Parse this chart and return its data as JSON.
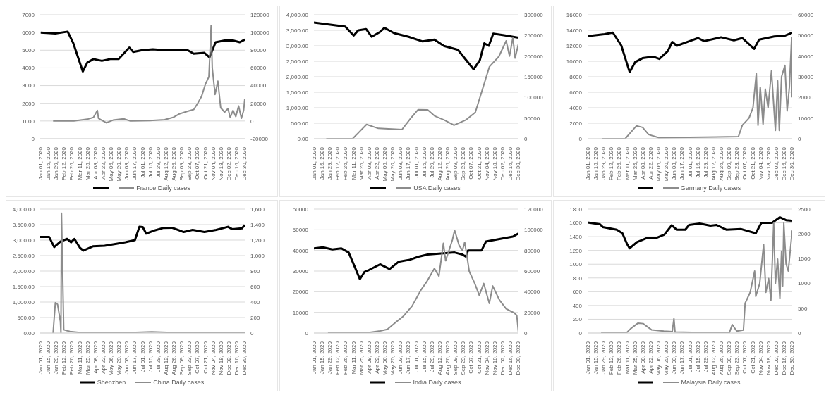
{
  "chart_data": [
    {
      "type": "line",
      "legend": "bottom",
      "grid": "y",
      "xlim": [
        "2020-01-01",
        "2020-12-31"
      ],
      "ylim": [
        0,
        7000
      ],
      "yticks": [
        0,
        1000,
        2000,
        3000,
        4000,
        5000,
        6000,
        7000
      ],
      "y2lim": [
        -20000,
        120000
      ],
      "y2ticks": [
        -20000,
        0,
        20000,
        40000,
        60000,
        80000,
        100000,
        120000
      ],
      "xticks": [
        {
          "value": "2020-01-01",
          "label": "Jan 01, 2020"
        },
        {
          "value": "2020-01-15",
          "label": "Jan 15, 2020"
        },
        {
          "value": "2020-01-29",
          "label": "Jan 29, 2020"
        },
        {
          "value": "2020-02-12",
          "label": "Feb 12, 2020"
        },
        {
          "value": "2020-02-26",
          "label": "Feb 26, 2020"
        },
        {
          "value": "2020-03-11",
          "label": "Mar 11, 2020"
        },
        {
          "value": "2020-03-25",
          "label": "Mar 25, 2020"
        },
        {
          "value": "2020-04-08",
          "label": "Apr 08, 2020"
        },
        {
          "value": "2020-04-22",
          "label": "Apr 22, 2020"
        },
        {
          "value": "2020-05-06",
          "label": "May 06, 2020"
        },
        {
          "value": "2020-05-20",
          "label": "May 20, 2020"
        },
        {
          "value": "2020-06-03",
          "label": "Jun 03, 2020"
        },
        {
          "value": "2020-06-17",
          "label": "Jun 17, 2020"
        },
        {
          "value": "2020-07-01",
          "label": "Jul 01, 2020"
        },
        {
          "value": "2020-07-15",
          "label": "Jul 15, 2020"
        },
        {
          "value": "2020-07-29",
          "label": "Jul 29, 2020"
        },
        {
          "value": "2020-08-12",
          "label": "Aug 12, 2020"
        },
        {
          "value": "2020-08-26",
          "label": "Aug 26, 2020"
        },
        {
          "value": "2020-09-09",
          "label": "Sep 09, 2020"
        },
        {
          "value": "2020-09-23",
          "label": "Sep 23, 2020"
        },
        {
          "value": "2020-10-07",
          "label": "Oct 07, 2020"
        },
        {
          "value": "2020-10-21",
          "label": "Oct 21, 2020"
        },
        {
          "value": "2020-11-04",
          "label": "Nov 04, 2020"
        },
        {
          "value": "2020-11-18",
          "label": "Nov 18, 2020"
        },
        {
          "value": "2020-12-02",
          "label": "Dec 02, 2020"
        },
        {
          "value": "2020-12-16",
          "label": "Dec 16, 2020"
        },
        {
          "value": "2020-12-30",
          "label": "Dec 30, 2020"
        }
      ],
      "series": [
        {
          "color": "#000000",
          "x": [
            "2020-01-02",
            "2020-01-28",
            "2020-02-19",
            "2020-02-29",
            "2020-03-17",
            "2020-03-25",
            "2020-04-05",
            "2020-04-20",
            "2020-05-05",
            "2020-05-20",
            "2020-06-08",
            "2020-06-15",
            "2020-07-01",
            "2020-07-20",
            "2020-08-10",
            "2020-09-01",
            "2020-09-20",
            "2020-10-01",
            "2020-10-20",
            "2020-10-29",
            "2020-11-09",
            "2020-11-25",
            "2020-12-10",
            "2020-12-22",
            "2020-12-31"
          ],
          "values": [
            6000,
            5950,
            6050,
            5400,
            3800,
            4300,
            4500,
            4400,
            4500,
            4500,
            5150,
            4900,
            5000,
            5050,
            5000,
            5000,
            5000,
            4800,
            4850,
            4600,
            5450,
            5550,
            5550,
            5450,
            5600
          ]
        },
        {
          "name": "France Daily cases",
          "color": "#8c8c8c",
          "axis": "y2",
          "x": [
            "2020-01-24",
            "2020-03-01",
            "2020-03-25",
            "2020-04-05",
            "2020-04-12",
            "2020-04-14",
            "2020-04-28",
            "2020-05-10",
            "2020-05-29",
            "2020-06-10",
            "2020-07-15",
            "2020-08-10",
            "2020-08-25",
            "2020-09-05",
            "2020-09-20",
            "2020-10-01",
            "2020-10-08",
            "2020-10-15",
            "2020-10-22",
            "2020-10-28",
            "2020-11-01",
            "2020-11-03",
            "2020-11-08",
            "2020-11-13",
            "2020-11-18",
            "2020-11-25",
            "2020-12-01",
            "2020-12-05",
            "2020-12-10",
            "2020-12-15",
            "2020-12-20",
            "2020-12-25",
            "2020-12-29",
            "2020-12-31"
          ],
          "values": [
            0,
            0,
            2000,
            4000,
            12000,
            3000,
            -2000,
            1000,
            2500,
            0,
            500,
            1500,
            4000,
            8000,
            11000,
            13000,
            20000,
            28000,
            42000,
            50000,
            108000,
            60000,
            30000,
            45000,
            15000,
            10000,
            14000,
            4000,
            12000,
            5000,
            17000,
            3000,
            12000,
            25000
          ]
        }
      ]
    },
    {
      "type": "line",
      "legend": "bottom",
      "grid": "y",
      "xlim": [
        "2020-01-01",
        "2020-12-31"
      ],
      "ylim": [
        0,
        4000
      ],
      "yticks": [
        {
          "value": 0,
          "label": "0.00"
        },
        {
          "value": 500,
          "label": "500.00"
        },
        {
          "value": 1000,
          "label": "1,000.00"
        },
        {
          "value": 1500,
          "label": "1,500.00"
        },
        {
          "value": 2000,
          "label": "2,000.00"
        },
        {
          "value": 2500,
          "label": "2,500.00"
        },
        {
          "value": 3000,
          "label": "3,000.00"
        },
        {
          "value": 3500,
          "label": "3,500.00"
        },
        {
          "value": 4000,
          "label": "4,000.00"
        }
      ],
      "y2lim": [
        0,
        300000
      ],
      "y2ticks": [
        0,
        50000,
        100000,
        150000,
        200000,
        250000,
        300000
      ],
      "xticks": [
        {
          "value": "2020-01-01",
          "label": "Jan 01, 2020"
        },
        {
          "value": "2020-01-15",
          "label": "Jan 15, 2020"
        },
        {
          "value": "2020-01-29",
          "label": "Jan 29, 2020"
        },
        {
          "value": "2020-02-12",
          "label": "Feb 12, 2020"
        },
        {
          "value": "2020-02-26",
          "label": "Feb 26, 2020"
        },
        {
          "value": "2020-03-11",
          "label": "Mar 11, 2020"
        },
        {
          "value": "2020-03-25",
          "label": "Mar 25, 2020"
        },
        {
          "value": "2020-04-08",
          "label": "Apr 08, 2020"
        },
        {
          "value": "2020-04-22",
          "label": "Apr 22, 2020"
        },
        {
          "value": "2020-05-06",
          "label": "May 06, 2020"
        },
        {
          "value": "2020-05-20",
          "label": "May 20, 2020"
        },
        {
          "value": "2020-06-03",
          "label": "Jun 03, 2020"
        },
        {
          "value": "2020-06-17",
          "label": "Jun 17, 2020"
        },
        {
          "value": "2020-07-01",
          "label": "Jul 01, 2020"
        },
        {
          "value": "2020-07-15",
          "label": "Jul 15, 2020"
        },
        {
          "value": "2020-07-29",
          "label": "Jul 29, 2020"
        },
        {
          "value": "2020-08-12",
          "label": "Aug 12, 2020"
        },
        {
          "value": "2020-08-26",
          "label": "Aug 26, 2020"
        },
        {
          "value": "2020-09-09",
          "label": "Sep 09, 2020"
        },
        {
          "value": "2020-09-23",
          "label": "Sep 23, 2020"
        },
        {
          "value": "2020-10-07",
          "label": "Oct 07, 2020"
        },
        {
          "value": "2020-10-21",
          "label": "Oct 21, 2020"
        },
        {
          "value": "2020-11-04",
          "label": "Nov 04, 2020"
        },
        {
          "value": "2020-11-18",
          "label": "Nov 18, 2020"
        },
        {
          "value": "2020-12-02",
          "label": "Dec 02, 2020"
        },
        {
          "value": "2020-12-16",
          "label": "Dec 16, 2020"
        },
        {
          "value": "2020-12-30",
          "label": "Dec 30, 2020"
        }
      ],
      "series": [
        {
          "color": "#000000",
          "x": [
            "2020-01-01",
            "2020-01-23",
            "2020-02-26",
            "2020-03-12",
            "2020-03-20",
            "2020-04-03",
            "2020-04-13",
            "2020-04-28",
            "2020-05-06",
            "2020-05-23",
            "2020-06-18",
            "2020-07-13",
            "2020-08-03",
            "2020-08-20",
            "2020-09-14",
            "2020-09-27",
            "2020-10-12",
            "2020-10-23",
            "2020-10-31",
            "2020-11-08",
            "2020-11-16",
            "2020-12-05",
            "2020-12-31"
          ],
          "values": [
            3750,
            3700,
            3620,
            3330,
            3500,
            3540,
            3290,
            3450,
            3580,
            3410,
            3290,
            3140,
            3200,
            2995,
            2870,
            2575,
            2240,
            2530,
            3080,
            3000,
            3390,
            3340,
            3260
          ]
        },
        {
          "name": "USA Daily cases",
          "color": "#8c8c8c",
          "axis": "y2",
          "x": [
            "2020-01-23",
            "2020-03-10",
            "2020-04-04",
            "2020-04-25",
            "2020-06-06",
            "2020-06-23",
            "2020-07-05",
            "2020-07-22",
            "2020-08-04",
            "2020-08-21",
            "2020-09-07",
            "2020-09-28",
            "2020-10-15",
            "2020-10-28",
            "2020-11-09",
            "2020-11-26",
            "2020-12-09",
            "2020-12-15",
            "2020-12-21",
            "2020-12-25",
            "2020-12-31"
          ],
          "values": [
            0,
            0,
            34600,
            25000,
            22000,
            51600,
            70400,
            70000,
            54700,
            45000,
            32700,
            45300,
            64000,
            120800,
            174000,
            199000,
            237000,
            200000,
            245000,
            195000,
            230000
          ]
        }
      ]
    },
    {
      "type": "line",
      "legend": "bottom",
      "grid": "y",
      "xlim": [
        "2020-01-01",
        "2020-12-31"
      ],
      "ylim": [
        0,
        16000
      ],
      "yticks": [
        0,
        2000,
        4000,
        6000,
        8000,
        10000,
        12000,
        14000,
        16000
      ],
      "y2lim": [
        0,
        60000
      ],
      "y2ticks": [
        0,
        10000,
        20000,
        30000,
        40000,
        50000,
        60000
      ],
      "xticks": [
        {
          "value": "2020-01-01",
          "label": "Jan 01, 2020"
        },
        {
          "value": "2020-01-15",
          "label": "Jan 15, 2020"
        },
        {
          "value": "2020-01-29",
          "label": "Jan 29, 2020"
        },
        {
          "value": "2020-02-12",
          "label": "Feb 12, 2020"
        },
        {
          "value": "2020-02-26",
          "label": "Feb 26, 2020"
        },
        {
          "value": "2020-03-11",
          "label": "Mar 11, 2020"
        },
        {
          "value": "2020-03-25",
          "label": "Mar 25, 2020"
        },
        {
          "value": "2020-04-08",
          "label": "Apr 08, 2020"
        },
        {
          "value": "2020-04-22",
          "label": "Apr 22, 2020"
        },
        {
          "value": "2020-05-06",
          "label": "May 06, 2020"
        },
        {
          "value": "2020-05-20",
          "label": "May 20, 2020"
        },
        {
          "value": "2020-06-03",
          "label": "Jun 03, 2020"
        },
        {
          "value": "2020-06-17",
          "label": "Jun 17, 2020"
        },
        {
          "value": "2020-07-01",
          "label": "Jul 01, 2020"
        },
        {
          "value": "2020-07-15",
          "label": "Jul 15, 2020"
        },
        {
          "value": "2020-07-29",
          "label": "Jul 29, 2020"
        },
        {
          "value": "2020-08-12",
          "label": "Aug 12, 2020"
        },
        {
          "value": "2020-08-26",
          "label": "Aug 26, 2020"
        },
        {
          "value": "2020-09-09",
          "label": "Sep 09, 2020"
        },
        {
          "value": "2020-09-23",
          "label": "Sep 23, 2020"
        },
        {
          "value": "2020-10-07",
          "label": "Oct 07, 2020"
        },
        {
          "value": "2020-10-21",
          "label": "Oct 21, 2020"
        },
        {
          "value": "2020-11-04",
          "label": "Nov 04, 2020"
        },
        {
          "value": "2020-11-18",
          "label": "Nov 18, 2020"
        },
        {
          "value": "2020-12-02",
          "label": "Dec 02, 2020"
        },
        {
          "value": "2020-12-16",
          "label": "Dec 16, 2020"
        },
        {
          "value": "2020-12-30",
          "label": "Dec 30, 2020"
        }
      ],
      "series": [
        {
          "color": "#000000",
          "x": [
            "2020-01-01",
            "2020-01-31",
            "2020-02-15",
            "2020-03-01",
            "2020-03-16",
            "2020-03-26",
            "2020-04-08",
            "2020-04-27",
            "2020-05-08",
            "2020-05-23",
            "2020-05-31",
            "2020-06-08",
            "2020-07-01",
            "2020-07-16",
            "2020-07-27",
            "2020-08-26",
            "2020-09-18",
            "2020-10-03",
            "2020-10-24",
            "2020-11-02",
            "2020-11-29",
            "2020-12-18",
            "2020-12-31"
          ],
          "values": [
            13250,
            13500,
            13700,
            12050,
            8600,
            9900,
            10400,
            10600,
            10300,
            11300,
            12500,
            12000,
            12600,
            13000,
            12600,
            13100,
            12700,
            13000,
            11600,
            12800,
            13200,
            13300,
            13700
          ]
        },
        {
          "name": "Germany Daily cases",
          "color": "#8c8c8c",
          "axis": "y2",
          "x": [
            "2020-01-27",
            "2020-03-08",
            "2020-03-28",
            "2020-04-08",
            "2020-04-19",
            "2020-05-07",
            "2020-06-30",
            "2020-09-26",
            "2020-10-03",
            "2020-10-15",
            "2020-10-22",
            "2020-10-28",
            "2020-10-31",
            "2020-11-04",
            "2020-11-09",
            "2020-11-13",
            "2020-11-18",
            "2020-11-24",
            "2020-12-01",
            "2020-12-05",
            "2020-12-08",
            "2020-12-12",
            "2020-12-18",
            "2020-12-22",
            "2020-12-26",
            "2020-12-30",
            "2020-12-31"
          ],
          "values": [
            0,
            0,
            6200,
            5500,
            2000,
            500,
            700,
            1000,
            6500,
            10000,
            15000,
            31600,
            6500,
            25000,
            7000,
            24000,
            15000,
            32900,
            4000,
            28000,
            4000,
            30000,
            35500,
            13500,
            25000,
            49000,
            20000
          ]
        }
      ]
    },
    {
      "type": "line",
      "legend": "bottom",
      "grid": "y",
      "xlim": [
        "2020-01-01",
        "2020-12-31"
      ],
      "ylim": [
        0,
        4000
      ],
      "yticks": [
        {
          "value": 0,
          "label": "0.00"
        },
        {
          "value": 500,
          "label": "500.00"
        },
        {
          "value": 1000,
          "label": "1,000.00"
        },
        {
          "value": 1500,
          "label": "1,500.00"
        },
        {
          "value": 2000,
          "label": "2,000.00"
        },
        {
          "value": 2500,
          "label": "2,500.00"
        },
        {
          "value": 3000,
          "label": "3,000.00"
        },
        {
          "value": 3500,
          "label": "3,500.00"
        },
        {
          "value": 4000,
          "label": "4,000.00"
        }
      ],
      "y2lim": [
        0,
        1600
      ],
      "y2ticks": [
        0,
        200,
        400,
        600,
        800,
        {
          "value": 1000,
          "label": "1,000"
        },
        {
          "value": 1200,
          "label": "1,200"
        },
        {
          "value": 1400,
          "label": "1,400"
        },
        {
          "value": 1600,
          "label": "1,600"
        }
      ],
      "xticks": [
        {
          "value": "2020-01-01",
          "label": "Jan 01, 2020"
        },
        {
          "value": "2020-01-15",
          "label": "Jan 15, 2020"
        },
        {
          "value": "2020-01-29",
          "label": "Jan 29, 2020"
        },
        {
          "value": "2020-02-12",
          "label": "Feb 12, 2020"
        },
        {
          "value": "2020-02-26",
          "label": "Feb 26, 2020"
        },
        {
          "value": "2020-03-11",
          "label": "Mar 11, 2020"
        },
        {
          "value": "2020-03-25",
          "label": "Mar 25, 2020"
        },
        {
          "value": "2020-04-08",
          "label": "Apr 08, 2020"
        },
        {
          "value": "2020-04-22",
          "label": "Apr 22, 2020"
        },
        {
          "value": "2020-05-06",
          "label": "May 06, 2020"
        },
        {
          "value": "2020-05-20",
          "label": "May 20, 2020"
        },
        {
          "value": "2020-06-03",
          "label": "Jun 03, 2020"
        },
        {
          "value": "2020-06-17",
          "label": "Jun 17, 2020"
        },
        {
          "value": "2020-07-01",
          "label": "Jul 01, 2020"
        },
        {
          "value": "2020-07-15",
          "label": "Jul 15, 2020"
        },
        {
          "value": "2020-07-29",
          "label": "Jul 29, 2020"
        },
        {
          "value": "2020-08-12",
          "label": "Aug 12, 2020"
        },
        {
          "value": "2020-08-26",
          "label": "Aug 26, 2020"
        },
        {
          "value": "2020-09-09",
          "label": "Sep 09, 2020"
        },
        {
          "value": "2020-09-23",
          "label": "Sep 23, 2020"
        },
        {
          "value": "2020-10-07",
          "label": "Oct 07, 2020"
        },
        {
          "value": "2020-10-21",
          "label": "Oct 21, 2020"
        },
        {
          "value": "2020-11-04",
          "label": "Nov 04, 2020"
        },
        {
          "value": "2020-11-18",
          "label": "Nov 18, 2020"
        },
        {
          "value": "2020-12-02",
          "label": "Dec 02, 2020"
        },
        {
          "value": "2020-12-16",
          "label": "Dec 16, 2020"
        },
        {
          "value": "2020-12-30",
          "label": "Dec 30, 2020"
        }
      ],
      "series": [
        {
          "name": "Shenzhen",
          "color": "#000000",
          "x": [
            "2020-01-01",
            "2020-01-17",
            "2020-01-26",
            "2020-02-06",
            "2020-02-18",
            "2020-02-25",
            "2020-03-02",
            "2020-03-12",
            "2020-03-18",
            "2020-04-04",
            "2020-04-25",
            "2020-05-16",
            "2020-06-01",
            "2020-06-18",
            "2020-06-26",
            "2020-07-02",
            "2020-07-08",
            "2020-07-21",
            "2020-08-07",
            "2020-08-23",
            "2020-09-13",
            "2020-09-29",
            "2020-10-20",
            "2020-11-10",
            "2020-12-01",
            "2020-12-09",
            "2020-12-26",
            "2020-12-31"
          ],
          "values": [
            3100,
            3100,
            2775,
            2950,
            3040,
            2930,
            3040,
            2750,
            2660,
            2800,
            2820,
            2880,
            2930,
            3000,
            3430,
            3420,
            3210,
            3300,
            3390,
            3400,
            3260,
            3330,
            3260,
            3330,
            3430,
            3350,
            3380,
            3490
          ]
        },
        {
          "name": "China Daily cases",
          "color": "#8c8c8c",
          "axis": "y2",
          "x": [
            "2020-01-24",
            "2020-01-28",
            "2020-02-01",
            "2020-02-06",
            "2020-02-07",
            "2020-02-08",
            "2020-02-12",
            "2020-02-23",
            "2020-03-15",
            "2020-06-01",
            "2020-07-18",
            "2020-09-01",
            "2020-12-31"
          ],
          "values": [
            0,
            392,
            370,
            150,
            0,
            1548,
            42,
            20,
            5,
            5,
            15,
            5,
            5
          ]
        }
      ]
    },
    {
      "type": "line",
      "legend": "bottom",
      "grid": "y",
      "xlim": [
        "2020-01-01",
        "2020-12-31"
      ],
      "ylim": [
        0,
        60000
      ],
      "yticks": [
        0,
        10000,
        20000,
        30000,
        40000,
        50000,
        60000
      ],
      "y2lim": [
        0,
        120000
      ],
      "y2ticks": [
        0,
        20000,
        40000,
        60000,
        80000,
        100000,
        120000
      ],
      "xticks": [
        {
          "value": "2020-01-01",
          "label": "Jan 01, 2020"
        },
        {
          "value": "2020-01-15",
          "label": "Jan 15, 2020"
        },
        {
          "value": "2020-01-29",
          "label": "Jan 29, 2020"
        },
        {
          "value": "2020-02-12",
          "label": "Feb 12, 2020"
        },
        {
          "value": "2020-02-26",
          "label": "Feb 26, 2020"
        },
        {
          "value": "2020-03-11",
          "label": "Mar 11, 2020"
        },
        {
          "value": "2020-03-25",
          "label": "Mar 25, 2020"
        },
        {
          "value": "2020-04-08",
          "label": "Apr 08, 2020"
        },
        {
          "value": "2020-04-22",
          "label": "Apr 22, 2020"
        },
        {
          "value": "2020-05-06",
          "label": "May 06, 2020"
        },
        {
          "value": "2020-05-20",
          "label": "May 20, 2020"
        },
        {
          "value": "2020-06-03",
          "label": "Jun 03, 2020"
        },
        {
          "value": "2020-06-17",
          "label": "Jun 17, 2020"
        },
        {
          "value": "2020-07-01",
          "label": "Jul 01, 2020"
        },
        {
          "value": "2020-07-15",
          "label": "Jul 15, 2020"
        },
        {
          "value": "2020-07-29",
          "label": "Jul 29, 2020"
        },
        {
          "value": "2020-08-12",
          "label": "Aug 12, 2020"
        },
        {
          "value": "2020-08-26",
          "label": "Aug 26, 2020"
        },
        {
          "value": "2020-09-09",
          "label": "Sep 09, 2020"
        },
        {
          "value": "2020-09-23",
          "label": "Sep 23, 2020"
        },
        {
          "value": "2020-10-07",
          "label": "Oct 07, 2020"
        },
        {
          "value": "2020-10-21",
          "label": "Oct 21, 2020"
        },
        {
          "value": "2020-11-04",
          "label": "Nov 04, 2020"
        },
        {
          "value": "2020-11-18",
          "label": "Nov 18, 2020"
        },
        {
          "value": "2020-12-02",
          "label": "Dec 02, 2020"
        },
        {
          "value": "2020-12-16",
          "label": "Dec 16, 2020"
        },
        {
          "value": "2020-12-30",
          "label": "Dec 30, 2020"
        }
      ],
      "series": [
        {
          "color": "#000000",
          "x": [
            "2020-01-01",
            "2020-01-17",
            "2020-02-03",
            "2020-02-19",
            "2020-03-03",
            "2020-03-15",
            "2020-03-23",
            "2020-03-31",
            "2020-04-08",
            "2020-04-28",
            "2020-05-15",
            "2020-05-31",
            "2020-06-20",
            "2020-07-06",
            "2020-07-22",
            "2020-08-15",
            "2020-09-08",
            "2020-09-22",
            "2020-09-28",
            "2020-10-02",
            "2020-10-26",
            "2020-11-03",
            "2020-11-27",
            "2020-12-21",
            "2020-12-31"
          ],
          "values": [
            41000,
            41500,
            40500,
            41000,
            39000,
            31300,
            26100,
            29500,
            30500,
            33250,
            31000,
            34500,
            35500,
            37000,
            38000,
            38500,
            39000,
            38000,
            37000,
            40000,
            40000,
            44300,
            45500,
            46700,
            48200
          ]
        },
        {
          "name": "India Daily cases",
          "color": "#8c8c8c",
          "axis": "y2",
          "x": [
            "2020-01-26",
            "2020-04-01",
            "2020-04-28",
            "2020-05-11",
            "2020-05-23",
            "2020-06-08",
            "2020-06-24",
            "2020-07-10",
            "2020-07-20",
            "2020-08-03",
            "2020-08-11",
            "2020-08-19",
            "2020-08-23",
            "2020-09-04",
            "2020-09-08",
            "2020-09-16",
            "2020-09-22",
            "2020-09-26",
            "2020-09-30",
            "2020-10-04",
            "2020-10-14",
            "2020-10-22",
            "2020-10-30",
            "2020-11-09",
            "2020-11-15",
            "2020-11-27",
            "2020-12-09",
            "2020-12-23",
            "2020-12-28",
            "2020-12-31"
          ],
          "values": [
            0,
            0,
            2000,
            3600,
            9100,
            16000,
            26000,
            41700,
            49500,
            62600,
            55000,
            87000,
            70000,
            90000,
            99600,
            85000,
            80000,
            88000,
            75000,
            60000,
            48000,
            36500,
            48000,
            28700,
            45600,
            32000,
            23500,
            19600,
            17000,
            0
          ]
        }
      ]
    },
    {
      "type": "line",
      "legend": "bottom",
      "grid": "y",
      "xlim": [
        "2020-01-01",
        "2020-12-31"
      ],
      "ylim": [
        0,
        1800
      ],
      "yticks": [
        0,
        200,
        400,
        600,
        800,
        1000,
        1200,
        1400,
        1600,
        1800
      ],
      "y2lim": [
        0,
        2500
      ],
      "y2ticks": [
        0,
        500,
        1000,
        1500,
        2000,
        2500
      ],
      "xticks": [
        {
          "value": "2020-01-01",
          "label": "Jan 01, 2020"
        },
        {
          "value": "2020-01-15",
          "label": "Jan 15, 2020"
        },
        {
          "value": "2020-01-29",
          "label": "Jan 29, 2020"
        },
        {
          "value": "2020-02-12",
          "label": "Feb 12, 2020"
        },
        {
          "value": "2020-02-26",
          "label": "Feb 26, 2020"
        },
        {
          "value": "2020-03-11",
          "label": "Mar 11, 2020"
        },
        {
          "value": "2020-03-25",
          "label": "Mar 25, 2020"
        },
        {
          "value": "2020-04-08",
          "label": "Apr 08, 2020"
        },
        {
          "value": "2020-04-22",
          "label": "Apr 22, 2020"
        },
        {
          "value": "2020-05-06",
          "label": "May 06, 2020"
        },
        {
          "value": "2020-05-20",
          "label": "May 20, 2020"
        },
        {
          "value": "2020-06-03",
          "label": "Jun 03, 2020"
        },
        {
          "value": "2020-06-17",
          "label": "Jun 17, 2020"
        },
        {
          "value": "2020-07-01",
          "label": "Jul 01, 2020"
        },
        {
          "value": "2020-07-15",
          "label": "Jul 15, 2020"
        },
        {
          "value": "2020-07-29",
          "label": "Jul 29, 2020"
        },
        {
          "value": "2020-08-12",
          "label": "Aug 12, 2020"
        },
        {
          "value": "2020-08-26",
          "label": "Aug 26, 2020"
        },
        {
          "value": "2020-09-09",
          "label": "Sep 09, 2020"
        },
        {
          "value": "2020-09-23",
          "label": "Sep 23, 2020"
        },
        {
          "value": "2020-10-07",
          "label": "Oct 07, 2020"
        },
        {
          "value": "2020-10-21",
          "label": "Oct 21, 2020"
        },
        {
          "value": "2020-11-04",
          "label": "Nov 04, 2020"
        },
        {
          "value": "2020-11-18",
          "label": "Nov 18, 2020"
        },
        {
          "value": "2020-12-02",
          "label": "Dec 02, 2020"
        },
        {
          "value": "2020-12-16",
          "label": "Dec 16, 2020"
        },
        {
          "value": "2020-12-30",
          "label": "Dec 30, 2020"
        }
      ],
      "series": [
        {
          "color": "#000000",
          "x": [
            "2020-01-01",
            "2020-01-23",
            "2020-01-28",
            "2020-02-22",
            "2020-03-03",
            "2020-03-11",
            "2020-03-16",
            "2020-03-29",
            "2020-04-17",
            "2020-05-02",
            "2020-05-17",
            "2020-05-30",
            "2020-06-08",
            "2020-06-23",
            "2020-06-30",
            "2020-07-19",
            "2020-08-07",
            "2020-08-18",
            "2020-09-05",
            "2020-10-01",
            "2020-10-27",
            "2020-11-06",
            "2020-11-25",
            "2020-12-09",
            "2020-12-20",
            "2020-12-31"
          ],
          "values": [
            1605,
            1580,
            1540,
            1500,
            1450,
            1300,
            1230,
            1320,
            1385,
            1380,
            1430,
            1566,
            1500,
            1500,
            1570,
            1590,
            1560,
            1570,
            1500,
            1510,
            1450,
            1600,
            1600,
            1682,
            1640,
            1630
          ]
        },
        {
          "name": "Malaysia Daily cases",
          "color": "#8c8c8c",
          "axis": "y2",
          "x": [
            "2020-01-25",
            "2020-03-10",
            "2020-03-18",
            "2020-03-31",
            "2020-04-09",
            "2020-04-24",
            "2020-05-16",
            "2020-05-31",
            "2020-06-03",
            "2020-06-05",
            "2020-07-20",
            "2020-09-10",
            "2020-09-15",
            "2020-09-23",
            "2020-10-05",
            "2020-10-08",
            "2020-10-17",
            "2020-10-25",
            "2020-10-27",
            "2020-11-03",
            "2020-11-10",
            "2020-11-14",
            "2020-11-19",
            "2020-11-23",
            "2020-11-28",
            "2020-12-01",
            "2020-12-05",
            "2020-12-09",
            "2020-12-12",
            "2020-12-14",
            "2020-12-16",
            "2020-12-20",
            "2020-12-24",
            "2020-12-31"
          ],
          "values": [
            0,
            0,
            90,
            200,
            190,
            65,
            40,
            30,
            290,
            20,
            10,
            10,
            170,
            40,
            60,
            600,
            820,
            1250,
            740,
            1000,
            1790,
            820,
            1100,
            660,
            2220,
            1000,
            1490,
            700,
            1650,
            950,
            2220,
            1400,
            1250,
            2070
          ]
        }
      ]
    }
  ]
}
